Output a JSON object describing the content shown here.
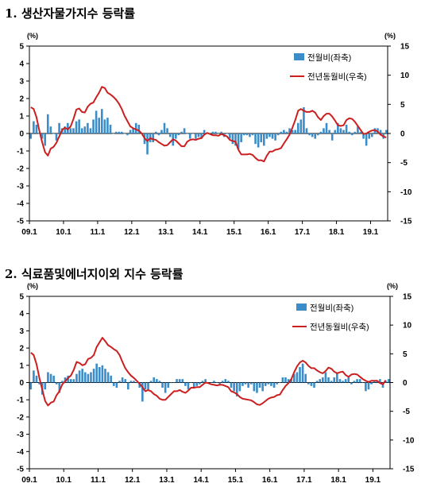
{
  "colors": {
    "bar": "#3a8dc8",
    "line": "#cc1f1f",
    "axis": "#000000"
  },
  "chart_data": [
    {
      "type": "bar+line",
      "title": "1. 생산자물가지수 등락률",
      "left_unit": "(%)",
      "right_unit": "(%)",
      "ylim_left": [
        -5,
        5
      ],
      "ylim_right": [
        -15,
        15
      ],
      "yticks_left": [
        "5",
        "4",
        "3",
        "2",
        "1",
        "0",
        "-1",
        "-2",
        "-3",
        "-4",
        "-5"
      ],
      "yticks_right": [
        "15",
        "10",
        "5",
        "0",
        "-5",
        "-10",
        "-15"
      ],
      "x_ticks": [
        "09.1",
        "10.1",
        "11.1",
        "12.1",
        "13.1",
        "14.1",
        "15.1",
        "16.1",
        "17.1",
        "18.1",
        "19.1"
      ],
      "legend": {
        "bar": "전월비(좌축)",
        "line": "전년동월비(우축)"
      },
      "series": [
        {
          "name": "전월비(좌축)",
          "axis": "left",
          "kind": "bar",
          "values": [
            -0.3,
            0.7,
            0.5,
            0.0,
            -0.3,
            -0.7,
            1.1,
            0.4,
            0.0,
            -0.4,
            0.6,
            0.3,
            0.4,
            0.6,
            0.3,
            0.3,
            0.7,
            0.8,
            0.3,
            0.4,
            0.6,
            0.3,
            0.8,
            1.3,
            0.9,
            1.4,
            0.8,
            0.9,
            0.5,
            0.0,
            0.1,
            0.1,
            0.1,
            0.0,
            -0.1,
            0.2,
            0.3,
            0.6,
            0.5,
            0.0,
            -0.6,
            -1.2,
            -0.5,
            -0.5,
            0.1,
            -0.1,
            0.2,
            0.6,
            0.3,
            -0.2,
            -0.7,
            -0.3,
            -0.1,
            0.1,
            0.3,
            0.0,
            -0.3,
            0.0,
            -0.3,
            -0.2,
            -0.3,
            0.2,
            0.0,
            0.0,
            0.1,
            0.1,
            0.0,
            0.1,
            -0.2,
            0.0,
            -0.3,
            -0.6,
            -0.7,
            -0.9,
            -0.5,
            -0.1,
            -0.1,
            -0.2,
            -0.1,
            -0.6,
            -0.8,
            -0.5,
            -0.7,
            -0.3,
            -0.2,
            -0.3,
            -0.4,
            -0.1,
            0.1,
            0.2,
            0.1,
            0.3,
            0.2,
            0.2,
            0.6,
            0.8,
            1.5,
            0.3,
            -0.1,
            -0.2,
            -0.3,
            -0.1,
            0.1,
            0.3,
            0.6,
            0.2,
            -0.4,
            0.2,
            0.6,
            0.3,
            0.2,
            0.5,
            0.1,
            -0.1,
            0.1,
            0.4,
            0.1,
            -0.3,
            -0.7,
            -0.3,
            -0.2,
            0.3,
            0.3,
            0.2,
            -0.3,
            0.2
          ]
        },
        {
          "name": "전년동월비(우축)",
          "axis": "right",
          "kind": "line",
          "values": [
            4.5,
            4.2,
            2.8,
            0.5,
            -1.5,
            -3.2,
            -3.8,
            -2.6,
            -2.3,
            -1.6,
            -0.5,
            0.6,
            1.0,
            0.7,
            1.2,
            2.5,
            4.1,
            4.3,
            3.7,
            3.6,
            4.6,
            5.1,
            5.3,
            6.2,
            7.0,
            8.0,
            7.8,
            7.0,
            6.7,
            6.3,
            5.8,
            5.1,
            4.2,
            3.0,
            2.1,
            1.2,
            0.9,
            0.7,
            0.5,
            0.0,
            -0.8,
            -1.3,
            -0.8,
            -1.0,
            -1.1,
            -1.5,
            -1.8,
            -2.1,
            -2.0,
            -1.5,
            -1.0,
            -1.2,
            -1.7,
            -2.2,
            -2.2,
            -1.4,
            -1.1,
            -1.0,
            -1.1,
            -0.9,
            -0.8,
            -0.2,
            0.1,
            -0.1,
            -0.3,
            -0.3,
            -0.4,
            -0.1,
            -0.3,
            -0.5,
            -1.1,
            -1.3,
            -1.4,
            -2.8,
            -3.6,
            -3.6,
            -3.6,
            -3.5,
            -3.7,
            -4.2,
            -4.6,
            -4.6,
            -4.8,
            -3.8,
            -3.1,
            -3.1,
            -2.8,
            -2.7,
            -2.5,
            -1.7,
            -1.0,
            -0.2,
            1.0,
            2.3,
            3.9,
            4.2,
            3.9,
            3.7,
            3.7,
            3.9,
            3.6,
            2.8,
            2.3,
            3.0,
            3.4,
            3.4,
            2.9,
            2.2,
            1.4,
            1.3,
            1.4,
            2.3,
            2.6,
            2.5,
            2.0,
            1.3,
            0.6,
            -0.1,
            0.0,
            0.3,
            0.5,
            0.6,
            0.3,
            -0.2,
            -0.5,
            -0.7
          ]
        }
      ]
    },
    {
      "type": "bar+line",
      "title": "2. 식료품및에너지이외 지수 등락률",
      "left_unit": "(%)",
      "right_unit": "(%)",
      "ylim_left": [
        -5,
        5
      ],
      "ylim_right": [
        -15,
        15
      ],
      "yticks_left": [
        "5",
        "4",
        "3",
        "2",
        "1",
        "0",
        "-1",
        "-2",
        "-3",
        "-4",
        "-5"
      ],
      "yticks_right": [
        "15",
        "10",
        "5",
        "0",
        "-5",
        "-10",
        "-15"
      ],
      "x_ticks": [
        "09.1",
        "10.1",
        "11.1",
        "12.1",
        "13.1",
        "14.1",
        "15.1",
        "16.1",
        "17.1",
        "18.1",
        "19.1"
      ],
      "legend": {
        "bar": "전월비(좌축)",
        "line": "전년동월비(우축)"
      },
      "series": [
        {
          "name": "전월비(좌축)",
          "axis": "left",
          "kind": "bar",
          "values": [
            -0.4,
            0.7,
            0.4,
            -0.1,
            -0.7,
            -0.4,
            0.6,
            0.5,
            0.4,
            -0.1,
            -0.6,
            0.1,
            0.3,
            0.4,
            0.2,
            0.2,
            0.5,
            0.7,
            0.8,
            0.6,
            0.5,
            0.6,
            0.8,
            1.1,
            0.9,
            1.0,
            0.8,
            0.6,
            0.4,
            -0.2,
            -0.3,
            0.1,
            0.3,
            0.2,
            -0.4,
            0.1,
            0.1,
            0.0,
            -0.3,
            -1.1,
            -0.4,
            -0.4,
            0.1,
            0.3,
            0.2,
            0.1,
            -0.3,
            -0.6,
            -0.3,
            0.0,
            0.0,
            0.2,
            0.2,
            0.2,
            -0.2,
            -0.4,
            0.0,
            -0.3,
            -0.2,
            -0.1,
            0.1,
            0.2,
            0.0,
            0.0,
            0.1,
            0.0,
            -0.1,
            0.1,
            0.2,
            0.1,
            -0.3,
            -0.5,
            -0.8,
            -0.5,
            -0.2,
            -0.1,
            -0.3,
            -0.1,
            -0.5,
            -0.6,
            -0.3,
            -0.5,
            -0.2,
            -0.1,
            -0.2,
            -0.3,
            -0.1,
            0.0,
            0.3,
            0.3,
            0.2,
            0.2,
            0.5,
            0.6,
            0.9,
            1.1,
            0.5,
            -0.1,
            -0.2,
            -0.3,
            0.1,
            0.2,
            0.3,
            0.6,
            0.3,
            0.1,
            0.3,
            0.6,
            0.2,
            0.1,
            0.2,
            0.3,
            -0.1,
            0.1,
            0.2,
            0.2,
            0.0,
            -0.5,
            -0.4,
            -0.1,
            0.1,
            0.1,
            0.2,
            -0.3,
            0.1,
            0.2
          ]
        },
        {
          "name": "전년동월비(우축)",
          "axis": "right",
          "kind": "line",
          "values": [
            5.2,
            4.8,
            3.2,
            0.8,
            -1.2,
            -3.2,
            -4.0,
            -3.5,
            -3.3,
            -2.2,
            -1.5,
            -0.3,
            0.2,
            0.8,
            1.2,
            2.2,
            3.6,
            3.4,
            3.0,
            3.2,
            4.1,
            4.3,
            4.8,
            6.2,
            7.0,
            7.8,
            7.2,
            6.5,
            6.2,
            5.8,
            5.5,
            4.8,
            3.6,
            2.5,
            1.8,
            1.2,
            0.8,
            0.3,
            -0.2,
            -0.8,
            -1.5,
            -1.3,
            -1.5,
            -2.0,
            -2.3,
            -2.8,
            -3.0,
            -3.0,
            -2.5,
            -2.0,
            -1.5,
            -1.5,
            -1.3,
            -1.6,
            -1.8,
            -1.4,
            -0.9,
            -0.9,
            -0.8,
            -0.8,
            -0.4,
            0.0,
            -0.1,
            -0.3,
            -0.4,
            -0.5,
            -0.4,
            -0.4,
            -0.6,
            -0.8,
            -1.5,
            -1.7,
            -2.0,
            -2.5,
            -2.8,
            -2.9,
            -3.0,
            -3.1,
            -3.4,
            -3.8,
            -3.9,
            -3.6,
            -3.2,
            -2.8,
            -2.6,
            -2.5,
            -2.2,
            -2.1,
            -1.3,
            -0.6,
            -0.1,
            0.6,
            1.8,
            2.8,
            3.5,
            3.8,
            3.5,
            2.9,
            2.5,
            2.5,
            2.1,
            1.8,
            1.6,
            2.0,
            2.6,
            2.4,
            1.9,
            1.6,
            1.8,
            1.9,
            1.3,
            1.0,
            1.4,
            1.5,
            1.4,
            1.0,
            0.6,
            0.3,
            0.1,
            0.3,
            0.3,
            0.3,
            -0.1,
            -0.3,
            0.4
          ]
        }
      ]
    }
  ]
}
